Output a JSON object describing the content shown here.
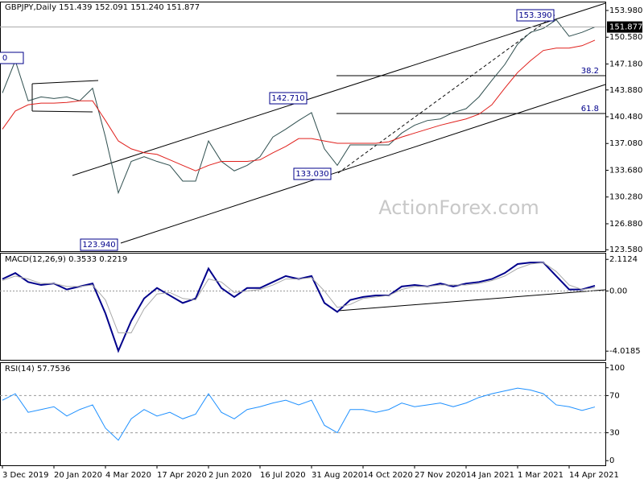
{
  "chart_data": [
    {
      "type": "line",
      "title": "GBPJPY,Daily  151.439 152.091 151.240 151.877",
      "watermark": "ActionForex.com",
      "categories": [
        "3 Dec 2019",
        null,
        null,
        null,
        "20 Jan 2020",
        null,
        null,
        null,
        "4 Mar 2020",
        null,
        null,
        null,
        "17 Apr 2020",
        null,
        null,
        null,
        "2 Jun 2020",
        null,
        null,
        null,
        "16 Jul 2020",
        null,
        null,
        null,
        "31 Aug 2020",
        null,
        null,
        null,
        "14 Oct 2020",
        null,
        null,
        null,
        "27 Nov 2020",
        null,
        null,
        null,
        "14 Jan 2021",
        null,
        null,
        null,
        "1 Mar 2021",
        null,
        null,
        null,
        "14 Apr 2021",
        null,
        null
      ],
      "series": [
        {
          "color": "#2f4f4f",
          "values": [
            143.5,
            147.6,
            142.5,
            143.0,
            142.8,
            143.0,
            142.5,
            144.1,
            137.9,
            130.8,
            134.8,
            135.4,
            134.8,
            134.3,
            132.3,
            132.3,
            137.4,
            134.8,
            133.6,
            134.3,
            135.4,
            137.9,
            138.9,
            140.0,
            141.0,
            136.4,
            134.3,
            136.9,
            136.9,
            136.9,
            136.9,
            138.4,
            139.4,
            140.0,
            140.2,
            141.0,
            141.5,
            143.0,
            145.1,
            147.1,
            149.7,
            151.2,
            151.7,
            152.8,
            150.7,
            151.2,
            151.877
          ]
        },
        {
          "color": "#e0201c",
          "values": [
            138.9,
            141.2,
            142.0,
            142.2,
            142.2,
            142.3,
            142.5,
            142.5,
            140.0,
            137.4,
            136.4,
            135.9,
            135.7,
            135.0,
            134.3,
            133.6,
            134.3,
            134.8,
            134.8,
            134.8,
            135.0,
            135.9,
            136.7,
            137.7,
            137.7,
            137.4,
            137.1,
            137.1,
            137.1,
            137.1,
            137.3,
            137.9,
            138.4,
            138.9,
            139.4,
            139.8,
            140.2,
            140.8,
            142.0,
            144.1,
            146.1,
            147.6,
            148.9,
            149.2,
            149.2,
            149.5,
            150.2
          ]
        }
      ],
      "ylim": [
        123.4,
        154.9
      ],
      "yticks": [
        {
          "value": 153.98,
          "label": "153.980"
        },
        {
          "value": 150.58,
          "label": "150.580"
        },
        {
          "value": 147.18,
          "label": "147.180"
        },
        {
          "value": 143.88,
          "label": "143.880"
        },
        {
          "value": 140.48,
          "label": "140.480"
        },
        {
          "value": 137.08,
          "label": "137.080"
        },
        {
          "value": 133.68,
          "label": "133.680"
        },
        {
          "value": 130.28,
          "label": "130.280"
        },
        {
          "value": 126.88,
          "label": "126.880"
        },
        {
          "value": 123.58,
          "label": "123.580"
        }
      ],
      "last_price": 151.877,
      "annotations": [
        "153.390",
        "142.710",
        "133.030",
        "123.940",
        "38.2",
        "61.8",
        "0"
      ]
    },
    {
      "type": "line",
      "title": "MACD(12,26,9) 0.3533 0.2219",
      "series": [
        {
          "color": "#00008b",
          "values": [
            0.8,
            1.2,
            0.6,
            0.4,
            0.5,
            0.1,
            0.3,
            0.5,
            -1.5,
            -4.0,
            -2.0,
            -0.5,
            0.2,
            -0.3,
            -0.8,
            -0.5,
            1.5,
            0.2,
            -0.4,
            0.2,
            0.2,
            0.6,
            1.0,
            0.8,
            1.0,
            -0.8,
            -1.4,
            -0.6,
            -0.4,
            -0.3,
            -0.3,
            0.3,
            0.4,
            0.3,
            0.5,
            0.3,
            0.5,
            0.6,
            0.8,
            1.2,
            1.8,
            1.9,
            1.9,
            1.0,
            0.1,
            0.1,
            0.3533
          ]
        },
        {
          "color": "#a9a9a9",
          "values": [
            0.7,
            1.0,
            0.8,
            0.5,
            0.5,
            0.3,
            0.3,
            0.4,
            -0.6,
            -2.8,
            -2.8,
            -1.2,
            -0.2,
            -0.1,
            -0.5,
            -0.6,
            0.8,
            0.6,
            -0.1,
            0.0,
            0.1,
            0.4,
            0.8,
            0.8,
            0.9,
            0.0,
            -1.1,
            -0.9,
            -0.5,
            -0.4,
            -0.3,
            0.1,
            0.3,
            0.3,
            0.4,
            0.4,
            0.4,
            0.5,
            0.7,
            1.0,
            1.5,
            1.8,
            1.9,
            1.3,
            0.4,
            0.1,
            0.2219
          ]
        }
      ],
      "ylim": [
        -4.6,
        2.5
      ],
      "yticks": [
        2.1124,
        {
          "value": 0,
          "label": "0.00"
        },
        -4.0185
      ]
    },
    {
      "type": "line",
      "title": "RSI(14) 57.7536",
      "series": [
        {
          "color": "#1e90ff",
          "values": [
            65,
            72,
            52,
            55,
            58,
            48,
            55,
            60,
            35,
            22,
            45,
            55,
            48,
            52,
            45,
            50,
            72,
            52,
            45,
            55,
            58,
            62,
            65,
            60,
            65,
            38,
            30,
            55,
            55,
            52,
            55,
            62,
            58,
            60,
            62,
            58,
            62,
            68,
            72,
            75,
            78,
            76,
            72,
            60,
            58,
            54,
            57.7536
          ]
        }
      ],
      "ylim": [
        -5,
        105
      ],
      "yticks": [
        100,
        70,
        30,
        0
      ]
    }
  ]
}
